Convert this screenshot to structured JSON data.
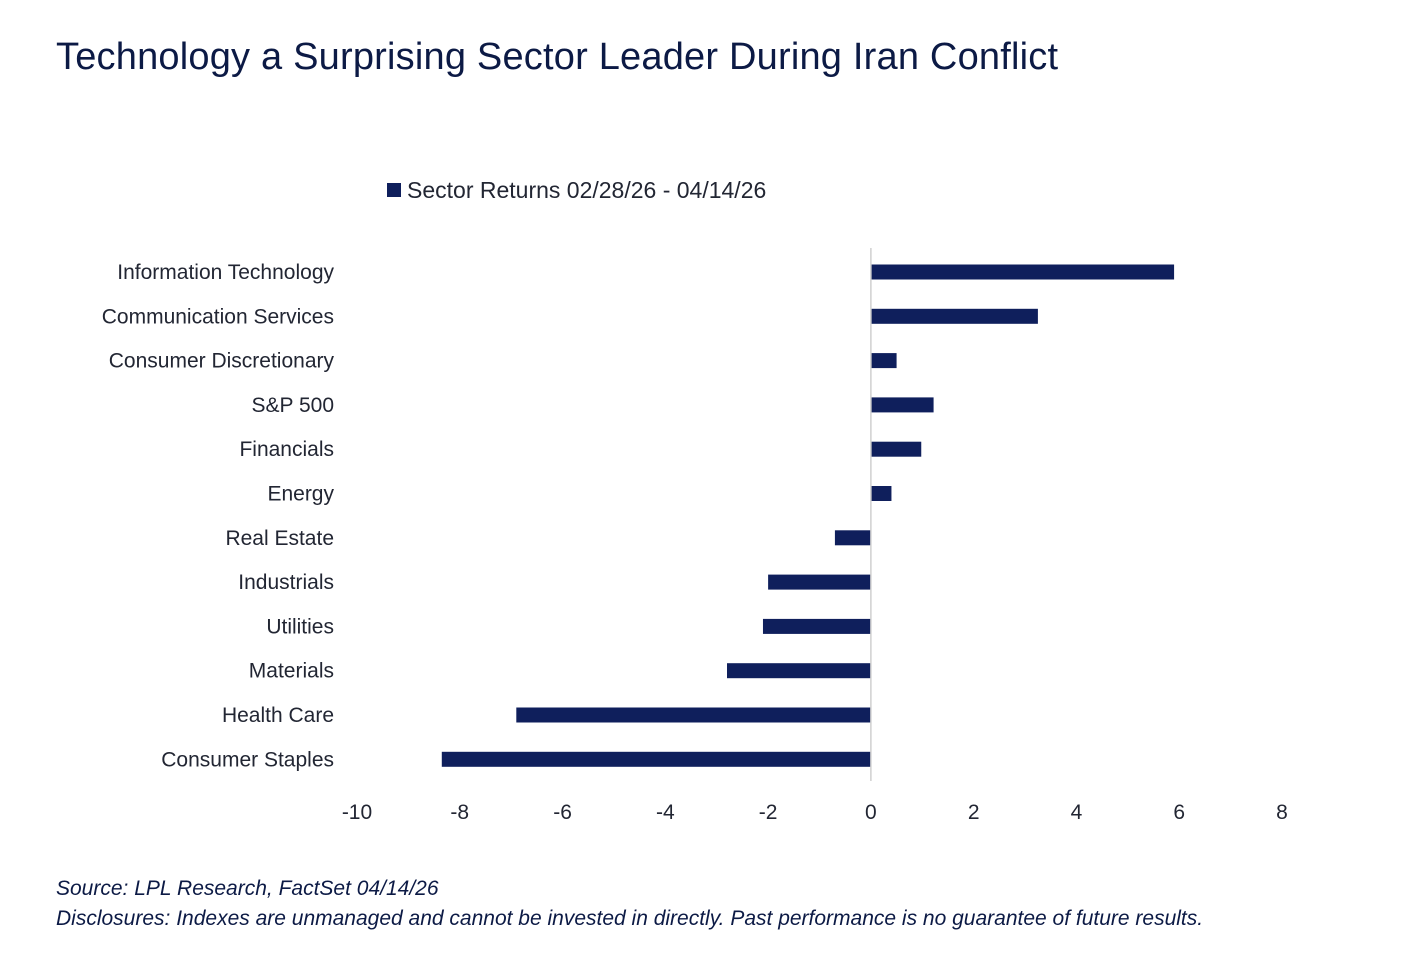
{
  "title": "Technology a Surprising Sector Leader During Iran Conflict",
  "chart_data": {
    "type": "bar",
    "orientation": "horizontal",
    "legend_position": "top",
    "categories": [
      "Information Technology",
      "Communication Services",
      "Consumer Discretionary",
      "S&P 500",
      "Financials",
      "Energy",
      "Real Estate",
      "Industrials",
      "Utilities",
      "Materials",
      "Health Care",
      "Consumer Staples"
    ],
    "series": [
      {
        "name": "Sector Returns 02/28/26 - 04/14/26",
        "color": "#0f1f5c",
        "values": [
          5.9,
          3.25,
          0.5,
          1.22,
          0.98,
          0.4,
          -0.7,
          -2.0,
          -2.1,
          -2.8,
          -6.9,
          -8.35
        ]
      }
    ],
    "xlim": [
      -10,
      8
    ],
    "xticks": [
      -10,
      -8,
      -6,
      -4,
      -2,
      0,
      2,
      4,
      6,
      8
    ],
    "grid": false
  },
  "footer": {
    "source": "Source: LPL Research, FactSet 04/14/26",
    "disclosures": "Disclosures: Indexes are unmanaged and cannot be invested in directly. Past performance is no guarantee of future results."
  }
}
